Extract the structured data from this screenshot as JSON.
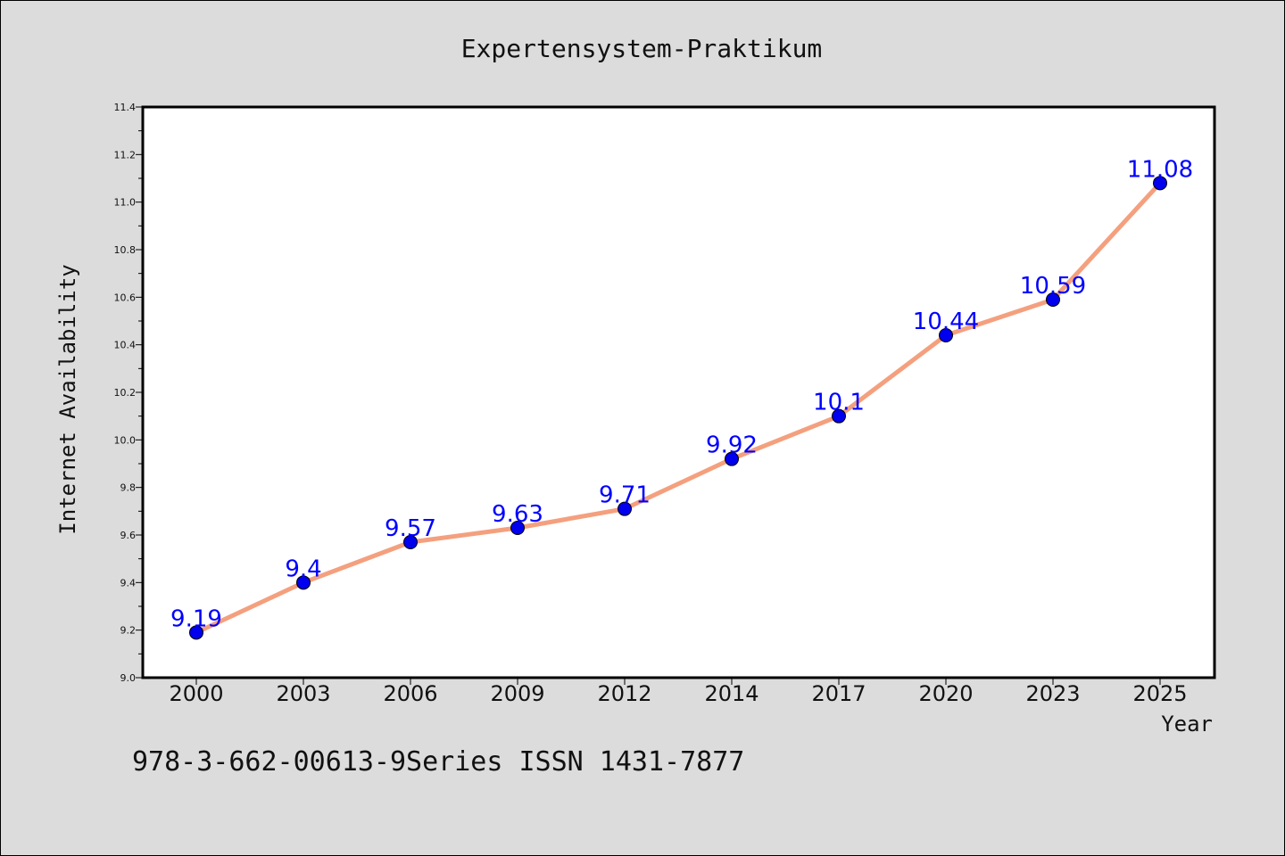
{
  "chart_data": {
    "type": "line",
    "title": "Expertensystem-Praktikum",
    "xlabel": "Year",
    "ylabel": "Internet Availability",
    "categories": [
      "2000",
      "2003",
      "2006",
      "2009",
      "2012",
      "2014",
      "2017",
      "2020",
      "2023",
      "2025"
    ],
    "series": [
      {
        "values": [
          9.19,
          9.4,
          9.57,
          9.63,
          9.71,
          9.92,
          10.1,
          10.44,
          10.59,
          11.08
        ]
      }
    ],
    "data_labels": [
      "9.19",
      "9.4",
      "9.57",
      "9.63",
      "9.71",
      "9.92",
      "10.1",
      "10.44",
      "10.59",
      "11.08"
    ],
    "ylim": [
      9.0,
      11.4
    ],
    "yticks": [
      "9.0",
      "9.2",
      "9.4",
      "9.6",
      "9.8",
      "10.0",
      "10.2",
      "10.4",
      "10.6",
      "10.8",
      "11.0",
      "11.2",
      "11.4"
    ],
    "grid": false,
    "line_color": "#f4a07e",
    "marker_color": "#0000ee",
    "label_color": "#0000ff"
  },
  "footer": "978-3-662-00613-9Series ISSN 1431-7877"
}
